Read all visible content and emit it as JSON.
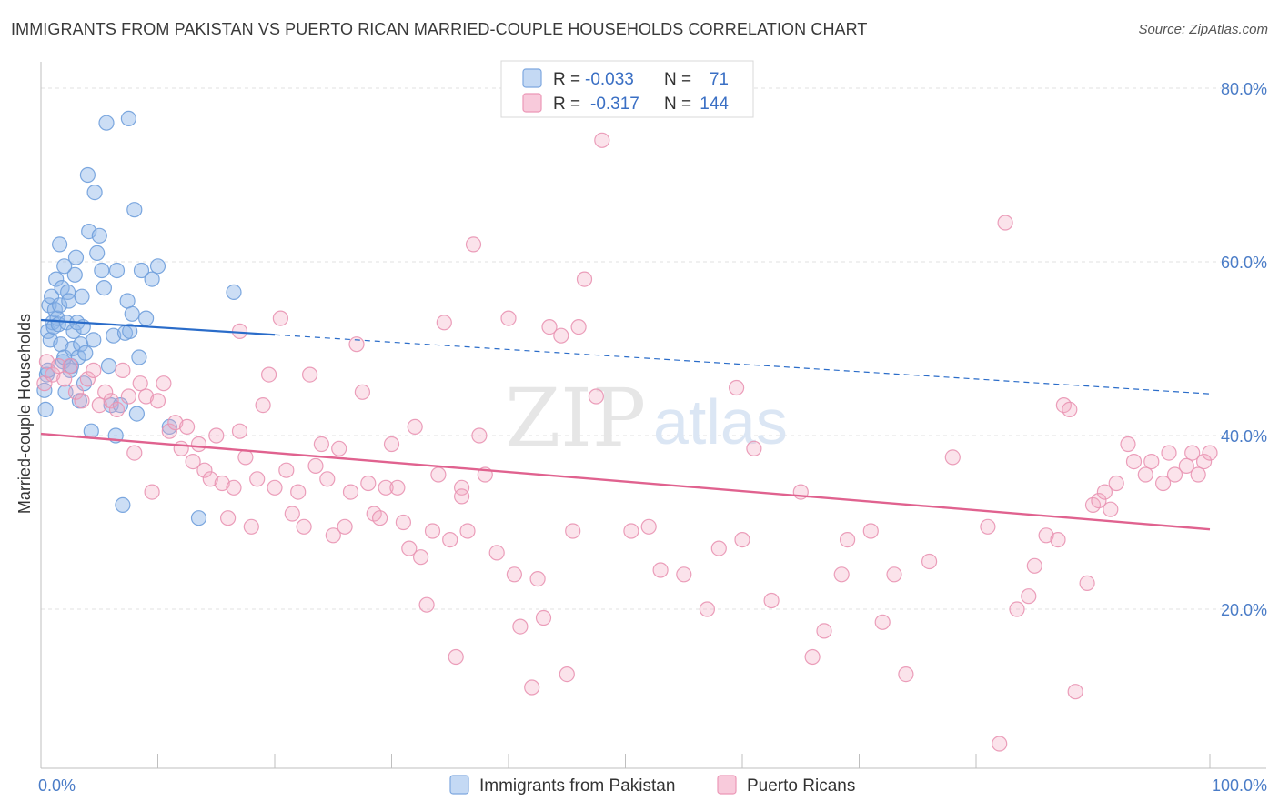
{
  "title": "IMMIGRANTS FROM PAKISTAN VS PUERTO RICAN MARRIED-COUPLE HOUSEHOLDS CORRELATION CHART",
  "source": "Source: ZipAtlas.com",
  "watermark": {
    "part1": "ZIP",
    "part2": "atlas"
  },
  "chart_data": {
    "type": "scatter",
    "title": "IMMIGRANTS FROM PAKISTAN VS PUERTO RICAN MARRIED-COUPLE HOUSEHOLDS CORRELATION CHART",
    "xlabel": "",
    "ylabel": "Married-couple Households",
    "xlim": [
      0,
      100
    ],
    "ylim": [
      0,
      82
    ],
    "x_tick_labels": [
      "0.0%",
      "100.0%"
    ],
    "y_ticks": [
      20,
      40,
      60,
      80
    ],
    "y_tick_labels": [
      "20.0%",
      "40.0%",
      "60.0%",
      "80.0%"
    ],
    "grid": true,
    "legend_position": "top-center",
    "series": [
      {
        "name": "Immigrants from Pakistan",
        "color": "#8fb6e8",
        "line_color": "#2a6cc9",
        "R": "-0.033",
        "N": "71",
        "trend": {
          "x0": 0,
          "y0": 53.3,
          "x1": 20,
          "y1": 51.6,
          "dashed_to_x": 100,
          "dashed_to_y": 44.8
        },
        "points": [
          [
            0.3,
            45.2
          ],
          [
            0.4,
            43.0
          ],
          [
            0.5,
            47.0
          ],
          [
            0.6,
            52.0
          ],
          [
            0.7,
            55.0
          ],
          [
            0.8,
            51.0
          ],
          [
            0.9,
            56.0
          ],
          [
            1.0,
            53.0
          ],
          [
            1.1,
            52.5
          ],
          [
            1.2,
            54.5
          ],
          [
            1.3,
            58.0
          ],
          [
            1.4,
            53.5
          ],
          [
            1.5,
            52.8
          ],
          [
            1.6,
            55.0
          ],
          [
            1.7,
            50.5
          ],
          [
            1.8,
            57.0
          ],
          [
            1.9,
            48.5
          ],
          [
            2.0,
            49.0
          ],
          [
            2.1,
            45.0
          ],
          [
            2.2,
            53.0
          ],
          [
            2.3,
            56.5
          ],
          [
            2.4,
            55.5
          ],
          [
            2.5,
            47.5
          ],
          [
            2.6,
            48.0
          ],
          [
            2.7,
            50.0
          ],
          [
            2.8,
            52.0
          ],
          [
            2.9,
            58.5
          ],
          [
            3.0,
            60.5
          ],
          [
            3.1,
            53.0
          ],
          [
            3.2,
            49.0
          ],
          [
            3.3,
            44.0
          ],
          [
            3.4,
            50.5
          ],
          [
            3.5,
            56.0
          ],
          [
            3.6,
            52.5
          ],
          [
            3.7,
            46.0
          ],
          [
            3.8,
            49.5
          ],
          [
            4.0,
            70.0
          ],
          [
            4.1,
            63.5
          ],
          [
            4.3,
            40.5
          ],
          [
            4.5,
            51.0
          ],
          [
            4.6,
            68.0
          ],
          [
            4.8,
            61.0
          ],
          [
            5.0,
            63.0
          ],
          [
            5.2,
            59.0
          ],
          [
            5.4,
            57.0
          ],
          [
            5.6,
            76.0
          ],
          [
            5.8,
            48.0
          ],
          [
            6.0,
            43.5
          ],
          [
            6.2,
            51.5
          ],
          [
            6.4,
            40.0
          ],
          [
            6.5,
            59.0
          ],
          [
            6.8,
            43.5
          ],
          [
            7.0,
            32.0
          ],
          [
            7.2,
            51.8
          ],
          [
            7.4,
            55.5
          ],
          [
            7.5,
            76.5
          ],
          [
            7.6,
            52.0
          ],
          [
            7.8,
            54.0
          ],
          [
            8.0,
            66.0
          ],
          [
            8.2,
            42.5
          ],
          [
            8.4,
            49.0
          ],
          [
            8.6,
            59.0
          ],
          [
            9.0,
            53.5
          ],
          [
            9.5,
            58.0
          ],
          [
            10.0,
            59.5
          ],
          [
            11.0,
            41.0
          ],
          [
            13.5,
            30.5
          ],
          [
            16.5,
            56.5
          ],
          [
            1.6,
            62.0
          ],
          [
            0.6,
            47.5
          ],
          [
            2.0,
            59.5
          ]
        ]
      },
      {
        "name": "Puerto Ricans",
        "color": "#f2a7c1",
        "line_color": "#e0628f",
        "R": "-0.317",
        "N": "144",
        "trend": {
          "x0": 0,
          "y0": 40.2,
          "x1": 100,
          "y1": 29.2
        },
        "points": [
          [
            0.3,
            46.0
          ],
          [
            0.5,
            48.5
          ],
          [
            1.0,
            47.0
          ],
          [
            1.5,
            48.0
          ],
          [
            2.0,
            46.5
          ],
          [
            2.5,
            48.0
          ],
          [
            3.0,
            45.0
          ],
          [
            3.5,
            44.0
          ],
          [
            4.0,
            46.5
          ],
          [
            4.5,
            47.5
          ],
          [
            5.0,
            43.5
          ],
          [
            5.5,
            45.0
          ],
          [
            6.0,
            44.0
          ],
          [
            6.5,
            43.0
          ],
          [
            7.0,
            47.5
          ],
          [
            7.5,
            44.5
          ],
          [
            8.0,
            38.0
          ],
          [
            8.5,
            46.0
          ],
          [
            9.0,
            44.5
          ],
          [
            9.5,
            33.5
          ],
          [
            10.0,
            44.0
          ],
          [
            10.5,
            46.0
          ],
          [
            11.0,
            40.5
          ],
          [
            11.5,
            41.5
          ],
          [
            12.0,
            38.5
          ],
          [
            12.5,
            41.0
          ],
          [
            13.0,
            37.0
          ],
          [
            13.5,
            39.0
          ],
          [
            14.0,
            36.0
          ],
          [
            14.5,
            35.0
          ],
          [
            15.0,
            40.0
          ],
          [
            15.5,
            34.5
          ],
          [
            16.0,
            30.5
          ],
          [
            16.5,
            34.0
          ],
          [
            17.0,
            40.5
          ],
          [
            17.5,
            37.5
          ],
          [
            18.0,
            29.5
          ],
          [
            18.5,
            35.0
          ],
          [
            19.0,
            43.5
          ],
          [
            19.5,
            47.0
          ],
          [
            20.0,
            34.0
          ],
          [
            20.5,
            53.5
          ],
          [
            21.0,
            36.0
          ],
          [
            21.5,
            31.0
          ],
          [
            22.0,
            33.5
          ],
          [
            22.5,
            29.5
          ],
          [
            23.0,
            47.0
          ],
          [
            23.5,
            36.5
          ],
          [
            24.0,
            39.0
          ],
          [
            24.5,
            35.0
          ],
          [
            25.0,
            28.5
          ],
          [
            25.5,
            38.5
          ],
          [
            26.0,
            29.5
          ],
          [
            26.5,
            33.5
          ],
          [
            27.0,
            50.5
          ],
          [
            27.5,
            45.0
          ],
          [
            28.0,
            34.5
          ],
          [
            28.5,
            31.0
          ],
          [
            29.0,
            30.5
          ],
          [
            29.5,
            34.0
          ],
          [
            30.0,
            39.0
          ],
          [
            30.5,
            34.0
          ],
          [
            31.0,
            30.0
          ],
          [
            31.5,
            27.0
          ],
          [
            32.0,
            41.0
          ],
          [
            32.5,
            26.0
          ],
          [
            33.0,
            20.5
          ],
          [
            33.5,
            29.0
          ],
          [
            34.0,
            35.5
          ],
          [
            34.5,
            53.0
          ],
          [
            35.0,
            28.0
          ],
          [
            35.5,
            14.5
          ],
          [
            36.0,
            34.0
          ],
          [
            36.5,
            29.0
          ],
          [
            37.0,
            62.0
          ],
          [
            37.5,
            40.0
          ],
          [
            38.0,
            35.5
          ],
          [
            39.0,
            26.5
          ],
          [
            40.0,
            53.5
          ],
          [
            40.5,
            24.0
          ],
          [
            41.0,
            18.0
          ],
          [
            42.0,
            11.0
          ],
          [
            42.5,
            23.5
          ],
          [
            43.0,
            19.0
          ],
          [
            43.5,
            52.5
          ],
          [
            44.5,
            51.5
          ],
          [
            45.0,
            12.5
          ],
          [
            45.5,
            29.0
          ],
          [
            46.0,
            52.5
          ],
          [
            46.5,
            58.0
          ],
          [
            47.5,
            44.5
          ],
          [
            48.0,
            74.0
          ],
          [
            50.5,
            29.0
          ],
          [
            53.0,
            24.5
          ],
          [
            55.0,
            24.0
          ],
          [
            57.0,
            20.0
          ],
          [
            58.0,
            27.0
          ],
          [
            59.5,
            45.5
          ],
          [
            61.0,
            38.5
          ],
          [
            62.5,
            21.0
          ],
          [
            65.0,
            33.5
          ],
          [
            66.0,
            14.5
          ],
          [
            67.0,
            17.5
          ],
          [
            68.5,
            24.0
          ],
          [
            69.0,
            28.0
          ],
          [
            71.0,
            29.0
          ],
          [
            72.0,
            18.5
          ],
          [
            73.0,
            24.0
          ],
          [
            74.0,
            12.5
          ],
          [
            76.0,
            25.5
          ],
          [
            78.0,
            37.5
          ],
          [
            81.0,
            29.5
          ],
          [
            82.0,
            4.5
          ],
          [
            82.5,
            64.5
          ],
          [
            83.5,
            20.0
          ],
          [
            84.5,
            21.5
          ],
          [
            85.0,
            25.0
          ],
          [
            86.0,
            28.5
          ],
          [
            87.5,
            43.5
          ],
          [
            87.0,
            28.0
          ],
          [
            88.0,
            43.0
          ],
          [
            88.5,
            10.5
          ],
          [
            89.5,
            23.0
          ],
          [
            90.0,
            32.0
          ],
          [
            90.5,
            32.5
          ],
          [
            91.0,
            33.5
          ],
          [
            91.5,
            31.5
          ],
          [
            92.0,
            34.5
          ],
          [
            93.0,
            39.0
          ],
          [
            93.5,
            37.0
          ],
          [
            94.5,
            35.5
          ],
          [
            95.0,
            37.0
          ],
          [
            96.0,
            34.5
          ],
          [
            96.5,
            38.0
          ],
          [
            97.0,
            35.5
          ],
          [
            98.0,
            36.5
          ],
          [
            98.5,
            38.0
          ],
          [
            99.0,
            35.5
          ],
          [
            99.5,
            37.0
          ],
          [
            100.0,
            38.0
          ],
          [
            36.0,
            33.0
          ],
          [
            52.0,
            29.5
          ],
          [
            17.0,
            52.0
          ],
          [
            60.0,
            28.0
          ]
        ]
      }
    ]
  },
  "legend": {
    "r_label": "R =",
    "n_label": "N ="
  }
}
